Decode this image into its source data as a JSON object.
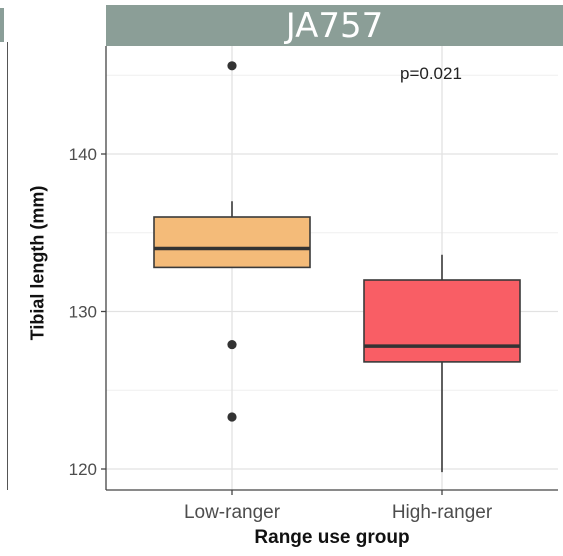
{
  "title": "JA757",
  "annotation": "p=0.021",
  "chart_data": {
    "type": "box",
    "title": "JA757",
    "xlabel": "Range use group",
    "ylabel": "Tibial length (mm)",
    "ylim": [
      119.5,
      147
    ],
    "yticks": [
      120,
      130,
      140
    ],
    "grid": true,
    "categories": [
      "Low-ranger",
      "High-ranger"
    ],
    "boxes": [
      {
        "category": "Low-ranger",
        "color": "#f4bb79",
        "whisker_low": 132.8,
        "q1": 132.8,
        "median": 134.0,
        "q3": 136.0,
        "whisker_high": 137.0,
        "outliers": [
          145.6,
          127.9,
          123.3
        ]
      },
      {
        "category": "High-ranger",
        "color": "#f95e65",
        "whisker_low": 119.8,
        "q1": 126.8,
        "median": 127.8,
        "q3": 132.0,
        "whisker_high": 133.6,
        "outliers": []
      }
    ],
    "annotation": "p=0.021"
  }
}
